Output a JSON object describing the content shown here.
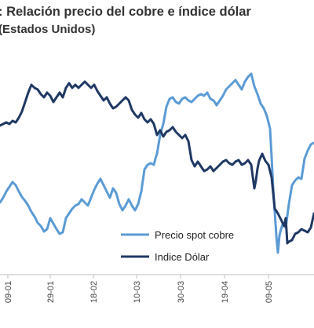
{
  "header": {
    "title": ": Relación precio del cobre e índice dólar",
    "subtitle": "(Estados Unidos)"
  },
  "chart_data": {
    "type": "line",
    "title": ": Relación precio del cobre e índice dólar",
    "subtitle": "(Estados Unidos)",
    "xlabel": "",
    "ylabel": "",
    "x_ticks": [
      "09-01",
      "29-01",
      "18-02",
      "10-03",
      "30-03",
      "19-04",
      "09-05"
    ],
    "grid": false,
    "legend": "center-right",
    "series": [
      {
        "name": "Precio spot cobre",
        "color": "#5b9bd5",
        "points": [
          [
            0,
            258
          ],
          [
            4,
            252
          ],
          [
            8,
            244
          ],
          [
            12,
            238
          ],
          [
            16,
            232
          ],
          [
            20,
            236
          ],
          [
            24,
            244
          ],
          [
            28,
            251
          ],
          [
            32,
            256
          ],
          [
            36,
            262
          ],
          [
            40,
            270
          ],
          [
            44,
            276
          ],
          [
            48,
            284
          ],
          [
            52,
            288
          ],
          [
            56,
            295
          ],
          [
            60,
            292
          ],
          [
            64,
            278
          ],
          [
            68,
            285
          ],
          [
            72,
            292
          ],
          [
            76,
            298
          ],
          [
            80,
            296
          ],
          [
            84,
            278
          ],
          [
            88,
            272
          ],
          [
            92,
            266
          ],
          [
            96,
            262
          ],
          [
            100,
            260
          ],
          [
            104,
            254
          ],
          [
            108,
            258
          ],
          [
            112,
            262
          ],
          [
            116,
            252
          ],
          [
            120,
            242
          ],
          [
            124,
            234
          ],
          [
            128,
            228
          ],
          [
            132,
            236
          ],
          [
            136,
            244
          ],
          [
            140,
            252
          ],
          [
            144,
            240
          ],
          [
            148,
            246
          ],
          [
            152,
            260
          ],
          [
            156,
            268
          ],
          [
            160,
            262
          ],
          [
            164,
            254
          ],
          [
            168,
            262
          ],
          [
            172,
            268
          ],
          [
            176,
            260
          ],
          [
            180,
            244
          ],
          [
            184,
            216
          ],
          [
            188,
            210
          ],
          [
            192,
            208
          ],
          [
            196,
            210
          ],
          [
            198,
            202
          ],
          [
            200,
            196
          ],
          [
            204,
            172
          ],
          [
            208,
            158
          ],
          [
            212,
            136
          ],
          [
            216,
            126
          ],
          [
            220,
            124
          ],
          [
            224,
            130
          ],
          [
            228,
            132
          ],
          [
            232,
            126
          ],
          [
            236,
            124
          ],
          [
            240,
            128
          ],
          [
            244,
            130
          ],
          [
            248,
            126
          ],
          [
            252,
            122
          ],
          [
            256,
            120
          ],
          [
            260,
            122
          ],
          [
            264,
            118
          ],
          [
            268,
            126
          ],
          [
            272,
            128
          ],
          [
            276,
            134
          ],
          [
            280,
            128
          ],
          [
            284,
            122
          ],
          [
            288,
            114
          ],
          [
            292,
            110
          ],
          [
            296,
            106
          ],
          [
            300,
            102
          ],
          [
            304,
            108
          ],
          [
            308,
            114
          ],
          [
            312,
            104
          ],
          [
            316,
            98
          ],
          [
            320,
            94
          ],
          [
            324,
            110
          ],
          [
            328,
            120
          ],
          [
            332,
            132
          ],
          [
            336,
            138
          ],
          [
            340,
            148
          ],
          [
            344,
            164
          ],
          [
            346,
            200
          ],
          [
            348,
            240
          ],
          [
            350,
            270
          ],
          [
            352,
            300
          ],
          [
            354,
            322
          ],
          [
            356,
            300
          ],
          [
            358,
            292
          ],
          [
            360,
            286
          ],
          [
            364,
            290
          ],
          [
            366,
            275
          ],
          [
            368,
            260
          ],
          [
            372,
            236
          ],
          [
            376,
            230
          ],
          [
            380,
            226
          ],
          [
            384,
            228
          ],
          [
            386,
            215
          ],
          [
            388,
            202
          ],
          [
            392,
            192
          ],
          [
            396,
            184
          ],
          [
            400,
            182
          ]
        ]
      },
      {
        "name": "Indice Dólar",
        "color": "#1f3864",
        "points": [
          [
            0,
            160
          ],
          [
            4,
            158
          ],
          [
            8,
            156
          ],
          [
            12,
            158
          ],
          [
            16,
            154
          ],
          [
            20,
            156
          ],
          [
            24,
            150
          ],
          [
            28,
            142
          ],
          [
            32,
            130
          ],
          [
            36,
            118
          ],
          [
            40,
            108
          ],
          [
            44,
            112
          ],
          [
            48,
            114
          ],
          [
            52,
            120
          ],
          [
            56,
            124
          ],
          [
            60,
            118
          ],
          [
            64,
            122
          ],
          [
            68,
            130
          ],
          [
            72,
            124
          ],
          [
            76,
            118
          ],
          [
            80,
            124
          ],
          [
            84,
            112
          ],
          [
            88,
            106
          ],
          [
            92,
            112
          ],
          [
            96,
            108
          ],
          [
            100,
            112
          ],
          [
            104,
            108
          ],
          [
            108,
            104
          ],
          [
            112,
            108
          ],
          [
            116,
            112
          ],
          [
            120,
            108
          ],
          [
            124,
            116
          ],
          [
            128,
            122
          ],
          [
            132,
            128
          ],
          [
            136,
            124
          ],
          [
            140,
            132
          ],
          [
            144,
            138
          ],
          [
            148,
            136
          ],
          [
            152,
            132
          ],
          [
            156,
            128
          ],
          [
            160,
            124
          ],
          [
            164,
            128
          ],
          [
            168,
            140
          ],
          [
            172,
            146
          ],
          [
            176,
            150
          ],
          [
            180,
            144
          ],
          [
            184,
            152
          ],
          [
            188,
            156
          ],
          [
            192,
            152
          ],
          [
            196,
            158
          ],
          [
            200,
            172
          ],
          [
            204,
            166
          ],
          [
            208,
            174
          ],
          [
            212,
            168
          ],
          [
            216,
            166
          ],
          [
            220,
            162
          ],
          [
            224,
            168
          ],
          [
            228,
            172
          ],
          [
            232,
            176
          ],
          [
            236,
            172
          ],
          [
            240,
            180
          ],
          [
            244,
            204
          ],
          [
            248,
            212
          ],
          [
            252,
            206
          ],
          [
            256,
            212
          ],
          [
            260,
            218
          ],
          [
            264,
            216
          ],
          [
            268,
            212
          ],
          [
            272,
            218
          ],
          [
            276,
            214
          ],
          [
            280,
            210
          ],
          [
            284,
            206
          ],
          [
            288,
            204
          ],
          [
            292,
            208
          ],
          [
            296,
            210
          ],
          [
            300,
            206
          ],
          [
            304,
            204
          ],
          [
            308,
            210
          ],
          [
            312,
            208
          ],
          [
            316,
            204
          ],
          [
            320,
            210
          ],
          [
            324,
            240
          ],
          [
            326,
            230
          ],
          [
            328,
            215
          ],
          [
            330,
            205
          ],
          [
            334,
            196
          ],
          [
            338,
            205
          ],
          [
            342,
            210
          ],
          [
            346,
            226
          ],
          [
            350,
            266
          ],
          [
            354,
            272
          ],
          [
            358,
            280
          ],
          [
            362,
            288
          ],
          [
            364,
            278
          ],
          [
            366,
            310
          ],
          [
            368,
            308
          ],
          [
            372,
            306
          ],
          [
            376,
            298
          ],
          [
            380,
            296
          ],
          [
            384,
            292
          ],
          [
            388,
            294
          ],
          [
            392,
            296
          ],
          [
            396,
            290
          ],
          [
            400,
            272
          ]
        ]
      }
    ]
  }
}
